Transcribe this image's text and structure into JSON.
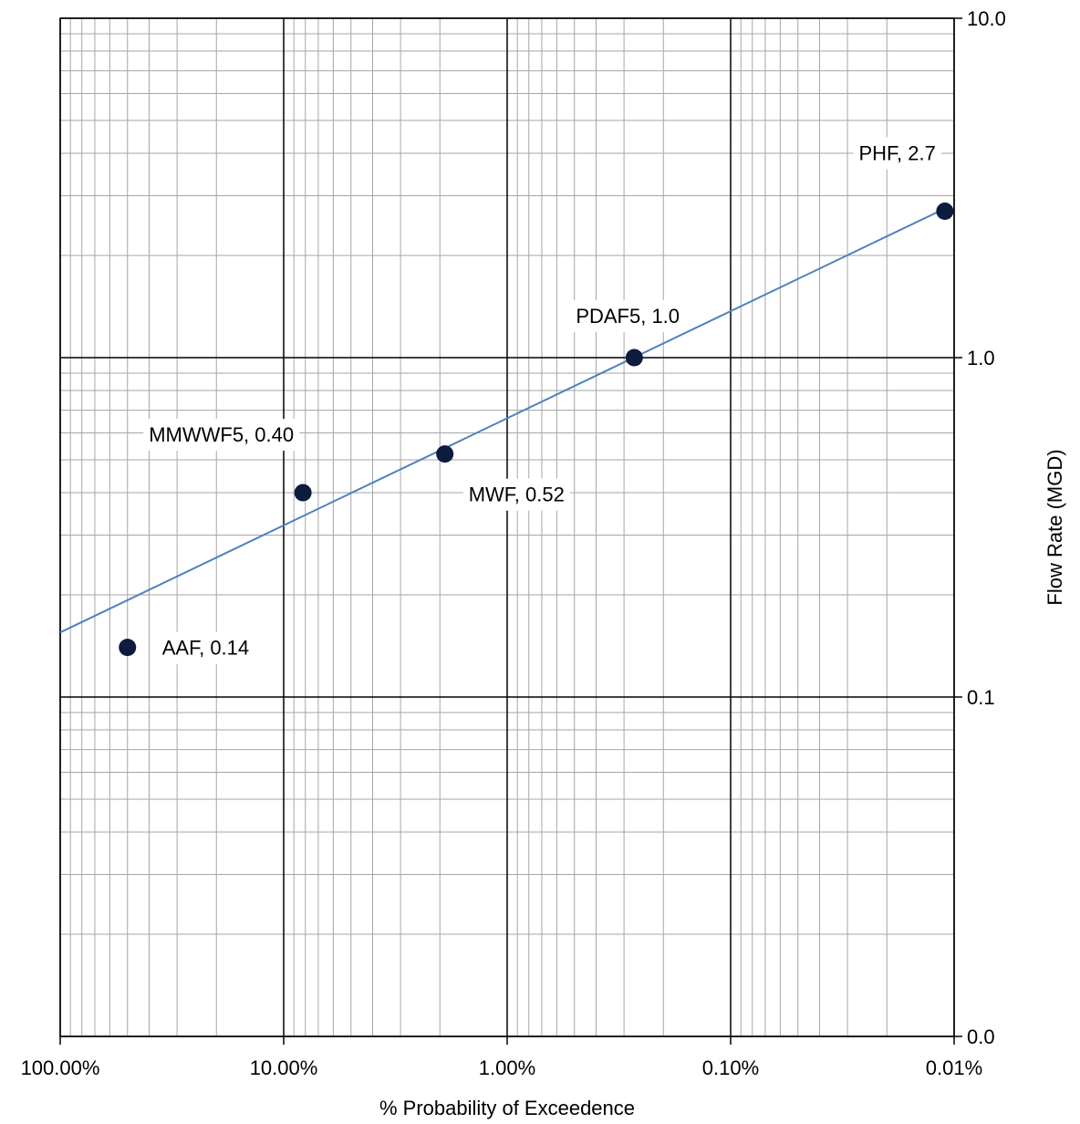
{
  "chart_data": {
    "type": "scatter",
    "title": "",
    "xlabel": "% Probability of Exceedence",
    "ylabel": "Flow Rate (MGD)",
    "x_scale": "log",
    "x_reversed": true,
    "y_scale": "log",
    "y_axis_side": "right",
    "xlim": [
      100,
      0.01
    ],
    "ylim": [
      0.01,
      10
    ],
    "grid": true,
    "x_ticks": [
      {
        "value": 100,
        "label": "100.00%"
      },
      {
        "value": 10,
        "label": "10.00%"
      },
      {
        "value": 1,
        "label": "1.00%"
      },
      {
        "value": 0.1,
        "label": "0.10%"
      },
      {
        "value": 0.01,
        "label": "0.01%"
      }
    ],
    "y_ticks": [
      {
        "value": 10,
        "label": "10.0"
      },
      {
        "value": 1,
        "label": "1.0"
      },
      {
        "value": 0.1,
        "label": "0.1"
      },
      {
        "value": 0.01,
        "label": "0.0"
      }
    ],
    "points": [
      {
        "x": 50,
        "y": 0.14,
        "label": "AAF, 0.14",
        "label_pos": "right"
      },
      {
        "x": 8.2,
        "y": 0.4,
        "label": "MMWWF5, 0.40",
        "label_pos": "upper-left"
      },
      {
        "x": 1.9,
        "y": 0.52,
        "label": "MWF, 0.52",
        "label_pos": "lower-right"
      },
      {
        "x": 0.27,
        "y": 1.0,
        "label": "PDAF5, 1.0",
        "label_pos": "above"
      },
      {
        "x": 0.011,
        "y": 2.7,
        "label": "PHF, 2.7",
        "label_pos": "upper-left"
      }
    ],
    "trendline": {
      "type": "log-log",
      "points": [
        {
          "x": 100,
          "y": 0.155
        },
        {
          "x": 0.011,
          "y": 2.75
        }
      ]
    },
    "colors": {
      "marker": "#0d1b3e",
      "trendline": "#4f81bd",
      "major_grid": "#000000",
      "minor_grid": "#a6a6a6"
    }
  }
}
